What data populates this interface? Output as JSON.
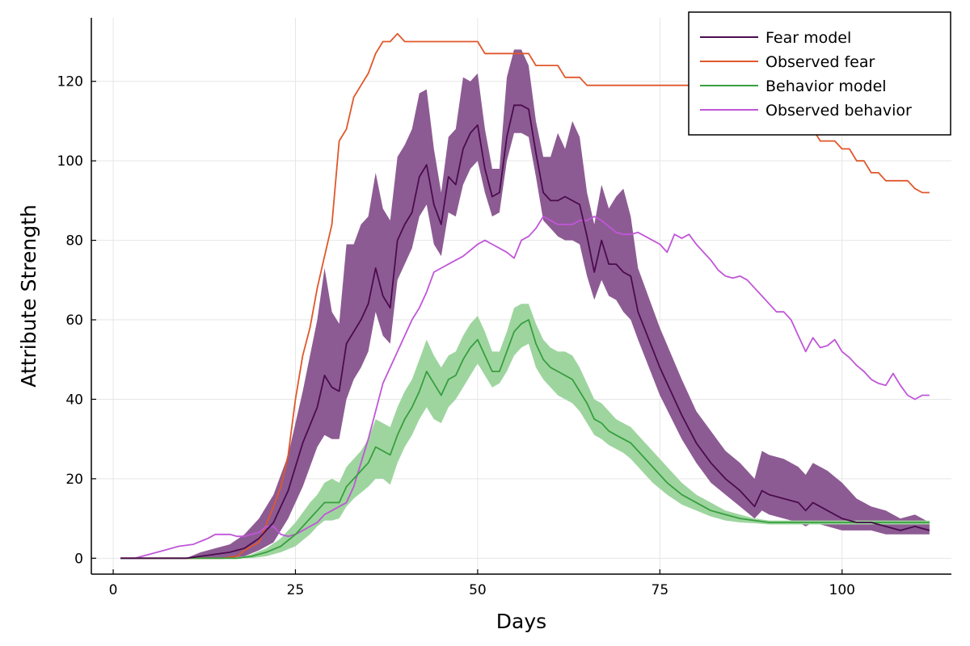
{
  "chart_data": {
    "type": "line",
    "xlabel": "Days",
    "ylabel": "Attribute Strength",
    "xlim": [
      -3,
      115
    ],
    "ylim": [
      -4,
      136
    ],
    "xticks": [
      0,
      25,
      50,
      75,
      100
    ],
    "yticks": [
      0,
      20,
      40,
      60,
      80,
      100,
      120
    ],
    "grid": true,
    "legend_position": "top-right",
    "colors": {
      "fear_model": "#4a0c4e",
      "fear_band": "#8d5b93",
      "observed_fear": "#e0572a",
      "behavior_model": "#389f3e",
      "behavior_band": "#9ed59f",
      "observed_behavior": "#c056d8"
    },
    "legend": [
      "Fear model",
      "Observed fear",
      "Behavior model",
      "Observed behavior"
    ],
    "series": [
      {
        "name": "Fear model",
        "x": [
          1,
          3,
          5,
          8,
          10,
          12,
          14,
          16,
          18,
          20,
          22,
          24,
          26,
          28,
          29,
          30,
          31,
          32,
          33,
          34,
          35,
          36,
          37,
          38,
          39,
          40,
          41,
          42,
          43,
          44,
          45,
          46,
          47,
          48,
          49,
          50,
          51,
          52,
          53,
          54,
          55,
          56,
          57,
          58,
          59,
          60,
          61,
          62,
          63,
          64,
          65,
          66,
          67,
          68,
          69,
          70,
          71,
          72,
          75,
          78,
          80,
          82,
          84,
          86,
          88,
          89,
          90,
          92,
          94,
          95,
          96,
          98,
          100,
          102,
          104,
          106,
          108,
          110,
          112
        ],
        "y": [
          0,
          0,
          0,
          0,
          0,
          0.5,
          1,
          1.5,
          2.5,
          5,
          9,
          17,
          29,
          38,
          46,
          43,
          42,
          54,
          57,
          60,
          64,
          73,
          66,
          63,
          80,
          84,
          87,
          96,
          99,
          89,
          84,
          96,
          94,
          103,
          107,
          109,
          98,
          91,
          92,
          106,
          114,
          114,
          113,
          102,
          92,
          90,
          90,
          91,
          90,
          89,
          81,
          72,
          80,
          74,
          74,
          72,
          71,
          62,
          48,
          36,
          29,
          24,
          20,
          17,
          13,
          17,
          16,
          15,
          14,
          12,
          14,
          12,
          10,
          9,
          9,
          8,
          7,
          8,
          7
        ],
        "band_low": [
          0,
          0,
          0,
          0,
          0,
          0,
          0,
          0,
          0.5,
          2,
          4,
          10,
          18,
          28,
          31,
          30,
          30,
          40,
          45,
          48,
          52,
          62,
          56,
          54,
          70,
          74,
          78,
          86,
          89,
          79,
          76,
          87,
          86,
          94,
          98,
          100,
          92,
          86,
          87,
          100,
          107,
          107,
          106,
          96,
          85,
          83,
          81,
          80,
          80,
          79,
          71,
          65,
          70,
          66,
          65,
          62,
          60,
          55,
          41,
          30,
          24,
          19,
          16,
          13,
          10,
          12,
          11,
          10,
          9,
          8,
          9,
          8,
          7,
          7,
          7,
          6,
          6,
          6,
          6
        ],
        "band_high": [
          0,
          0,
          0,
          0,
          0,
          1.5,
          2.5,
          3.5,
          6,
          10,
          16,
          26,
          42,
          60,
          73,
          62,
          59,
          79,
          79,
          84,
          86,
          97,
          88,
          85,
          101,
          104,
          108,
          117,
          118,
          103,
          92,
          106,
          108,
          121,
          120,
          122,
          108,
          98,
          98,
          121,
          128,
          128,
          124,
          110,
          101,
          101,
          107,
          103,
          110,
          106,
          92,
          84,
          94,
          88,
          91,
          93,
          86,
          73,
          58,
          45,
          37,
          32,
          27,
          24,
          20,
          27,
          26,
          25,
          23,
          21,
          24,
          22,
          19,
          15,
          13,
          12,
          10,
          11,
          9
        ]
      },
      {
        "name": "Observed fear",
        "x": [
          1,
          3,
          5,
          10,
          15,
          17,
          18,
          20,
          22,
          23,
          24,
          25,
          26,
          27,
          28,
          29,
          30,
          31,
          32,
          33,
          34,
          35,
          36,
          37,
          38,
          39,
          40,
          41,
          42,
          50,
          51,
          52,
          56,
          57,
          58,
          61,
          62,
          64,
          65,
          66,
          85,
          95,
          96,
          97,
          99,
          100,
          101,
          102,
          103,
          104,
          105,
          106,
          109,
          110,
          111,
          112
        ],
        "y": [
          0,
          0,
          0,
          0,
          0,
          0.5,
          2,
          4,
          13,
          18,
          26,
          40,
          51,
          58,
          68,
          76,
          84,
          105,
          108,
          116,
          119,
          122,
          127,
          130,
          130,
          132,
          130,
          130,
          130,
          130,
          127,
          127,
          127,
          127,
          124,
          124,
          121,
          121,
          119,
          119,
          119,
          109,
          108,
          105,
          105,
          103,
          103,
          100,
          100,
          97,
          97,
          95,
          95,
          93,
          92,
          92
        ]
      },
      {
        "name": "Behavior model",
        "x": [
          1,
          5,
          10,
          15,
          17,
          19,
          21,
          23,
          25,
          27,
          28,
          29,
          30,
          31,
          32,
          33,
          34,
          35,
          36,
          37,
          38,
          39,
          40,
          41,
          42,
          43,
          44,
          45,
          46,
          47,
          48,
          49,
          50,
          51,
          52,
          53,
          54,
          55,
          56,
          57,
          58,
          59,
          60,
          61,
          62,
          63,
          64,
          65,
          66,
          67,
          68,
          69,
          70,
          71,
          72,
          74,
          76,
          78,
          80,
          82,
          84,
          86,
          88,
          90,
          94,
          98,
          100,
          104,
          108,
          112
        ],
        "y": [
          0,
          0,
          0,
          0,
          0,
          0.5,
          1.5,
          3,
          6,
          10,
          12,
          14,
          14,
          14,
          18,
          20,
          22,
          24,
          28,
          27,
          26,
          31,
          35,
          38,
          42,
          47,
          44,
          41,
          45,
          46,
          50,
          53,
          55,
          51,
          47,
          47,
          52,
          57,
          59,
          60,
          54,
          50,
          48,
          47,
          46,
          45,
          42,
          39,
          35,
          34,
          32,
          31,
          30,
          29,
          27,
          23,
          19,
          16,
          14,
          12,
          11,
          10,
          9.5,
          9,
          9,
          9,
          9,
          9,
          9,
          9
        ],
        "band_low": [
          0,
          0,
          0,
          0,
          0,
          0,
          0.5,
          1.5,
          3,
          6,
          8,
          9.5,
          9.5,
          10,
          13,
          15,
          16.5,
          18,
          20,
          20,
          18.5,
          24,
          28,
          31,
          35,
          38,
          35,
          34,
          38,
          40,
          43,
          46,
          49,
          46,
          43,
          44,
          47,
          51,
          53,
          54,
          48,
          45,
          43,
          41,
          40,
          39,
          37,
          34,
          31,
          30,
          28.5,
          27.5,
          26.5,
          25,
          23,
          19,
          16,
          13.5,
          12,
          10.5,
          9.5,
          9,
          8.8,
          8.5,
          8.5,
          8.5,
          8.5,
          8.5,
          8.5,
          8.5
        ],
        "band_high": [
          0,
          0,
          0,
          0,
          0,
          1,
          2.5,
          5,
          9,
          14,
          16,
          19,
          20,
          19,
          23,
          25,
          27,
          30,
          35,
          34,
          33,
          38,
          42,
          45,
          50,
          55,
          51,
          48,
          51,
          52,
          56,
          59,
          61,
          57,
          52,
          52,
          57,
          63,
          64,
          64,
          59,
          55,
          53,
          52,
          52,
          51,
          48,
          44,
          40,
          39,
          37,
          35,
          34,
          33,
          31,
          27,
          23,
          19,
          16,
          14,
          12,
          11,
          10,
          9.5,
          9.5,
          9.5,
          9.5,
          9.5,
          9.5,
          9.5
        ]
      },
      {
        "name": "Observed behavior",
        "x": [
          1,
          3,
          5,
          7,
          9,
          11,
          13,
          14,
          15,
          16,
          17,
          18,
          19,
          20,
          21,
          22,
          23,
          24,
          25,
          26,
          27,
          28,
          29,
          30,
          31,
          32,
          33,
          34,
          35,
          36,
          37,
          38,
          39,
          40,
          41,
          42,
          43,
          44,
          45,
          46,
          47,
          48,
          49,
          50,
          51,
          52,
          53,
          54,
          55,
          56,
          57,
          58,
          59,
          60,
          61,
          62,
          63,
          64,
          65,
          66,
          67,
          68,
          69,
          70,
          71,
          72,
          73,
          74,
          75,
          76,
          77,
          78,
          79,
          80,
          81,
          82,
          83,
          84,
          85,
          86,
          87,
          88,
          89,
          90,
          91,
          92,
          93,
          94,
          95,
          96,
          97,
          98,
          99,
          100,
          101,
          102,
          103,
          104,
          105,
          106,
          107,
          108,
          109,
          110,
          111,
          112
        ],
        "y": [
          0,
          0,
          1,
          2,
          3,
          3.5,
          5,
          6,
          6,
          6,
          5.5,
          5.5,
          6,
          6.5,
          8,
          8,
          6,
          5.5,
          6,
          7,
          8,
          9,
          11,
          12,
          13,
          14,
          18,
          24,
          30,
          37,
          44,
          48,
          52,
          56,
          60,
          63,
          67,
          72,
          73,
          74,
          75,
          76,
          77.5,
          79,
          80,
          79,
          78,
          77,
          75.5,
          80,
          81,
          83,
          86,
          85,
          84,
          84,
          84,
          85,
          85,
          86,
          85,
          83.5,
          82,
          81.5,
          81.5,
          82,
          81,
          80,
          79,
          77,
          81.5,
          80.5,
          81.5,
          79,
          77,
          75,
          72.5,
          71,
          70.5,
          71,
          70,
          68,
          66,
          64,
          62,
          62,
          60,
          56,
          52,
          55.5,
          53,
          53.5,
          55,
          52,
          50.5,
          48.5,
          47,
          45,
          44,
          43.5,
          46.5,
          43.5,
          41,
          40,
          41,
          41
        ]
      }
    ]
  }
}
